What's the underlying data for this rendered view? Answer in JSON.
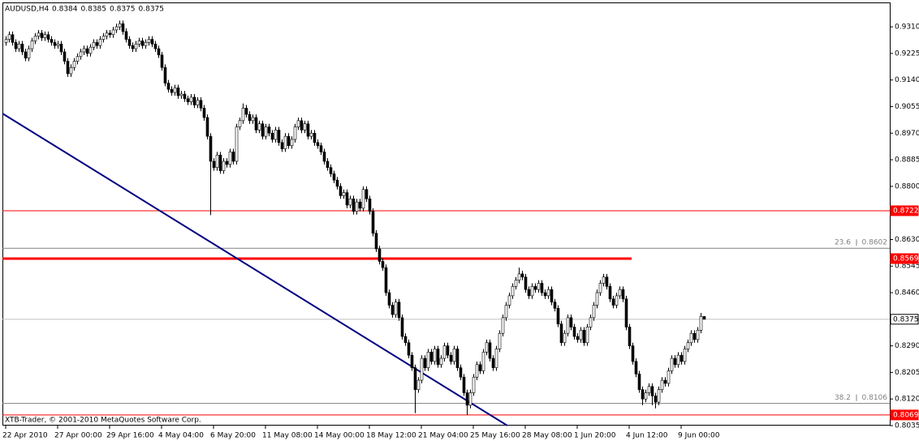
{
  "chart_data": {
    "type": "candlestick",
    "title": "AUDUSD,H4",
    "footer": "XTB-Trader, © 2001-2010 MetaQuotes Software Corp.",
    "ylim": [
      0.8035,
      0.9388
    ],
    "yticks": [
      {
        "value": 0.931,
        "label": "0.9310"
      },
      {
        "value": 0.9225,
        "label": "0.9225"
      },
      {
        "value": 0.914,
        "label": "0.9140"
      },
      {
        "value": 0.9055,
        "label": "0.9055"
      },
      {
        "value": 0.897,
        "label": "0.8970"
      },
      {
        "value": 0.8885,
        "label": "0.8885"
      },
      {
        "value": 0.88,
        "label": "0.8800"
      },
      {
        "value": 0.863,
        "label": "0.8630"
      },
      {
        "value": 0.8545,
        "label": "0.8545"
      },
      {
        "value": 0.846,
        "label": "0.8460"
      },
      {
        "value": 0.829,
        "label": "0.8290"
      },
      {
        "value": 0.8205,
        "label": "0.8205"
      },
      {
        "value": 0.812,
        "label": "0.8120"
      },
      {
        "value": 0.8035,
        "label": "0.8035"
      }
    ],
    "xticks": [
      {
        "index": 0,
        "label": "22 Apr 2010"
      },
      {
        "index": 16,
        "label": "27 Apr 00:00"
      },
      {
        "index": 32,
        "label": "29 Apr 16:00"
      },
      {
        "index": 48,
        "label": "4 May 04:00"
      },
      {
        "index": 64,
        "label": "6 May 20:00"
      },
      {
        "index": 80,
        "label": "11 May 08:00"
      },
      {
        "index": 96,
        "label": "14 May 00:00"
      },
      {
        "index": 112,
        "label": "18 May 12:00"
      },
      {
        "index": 128,
        "label": "21 May 04:00"
      },
      {
        "index": 144,
        "label": "25 May 16:00"
      },
      {
        "index": 160,
        "label": "28 May 08:00"
      },
      {
        "index": 176,
        "label": "1 Jun 20:00"
      },
      {
        "index": 192,
        "label": "4 Jun 12:00"
      },
      {
        "index": 208,
        "label": "9 Jun 00:00"
      }
    ],
    "horizontal_lines": [
      {
        "value": 0.8722,
        "color": "#ff0000",
        "width": 1,
        "label_bg": "#ff0000"
      },
      {
        "value": 0.8569,
        "color": "#ff0000",
        "width": 3,
        "label_bg": "#ff0000"
      },
      {
        "value": 0.8069,
        "color": "#ff0000",
        "width": 1,
        "label_bg": "#ff0000"
      },
      {
        "value": 0.8375,
        "color": "#c0c0c0",
        "width": 1,
        "label_bg": "#ffffff"
      }
    ],
    "fibo_levels": [
      {
        "level": 23.6,
        "price": 0.8602
      },
      {
        "level": 38.2,
        "price": 0.8106
      }
    ],
    "trendline": {
      "color": "#000080",
      "values": [
        0.9033,
        0.8035
      ]
    },
    "candles": [
      [
        0.926,
        0.928,
        0.925,
        0.927
      ],
      [
        0.927,
        0.9295,
        0.926,
        0.9285
      ],
      [
        0.9285,
        0.9295,
        0.925,
        0.926
      ],
      [
        0.926,
        0.927,
        0.923,
        0.924
      ],
      [
        0.924,
        0.9265,
        0.923,
        0.9255
      ],
      [
        0.9255,
        0.9265,
        0.922,
        0.923
      ],
      [
        0.923,
        0.924,
        0.92,
        0.921
      ],
      [
        0.921,
        0.925,
        0.92,
        0.924
      ],
      [
        0.924,
        0.9275,
        0.923,
        0.9265
      ],
      [
        0.9265,
        0.929,
        0.9255,
        0.928
      ],
      [
        0.928,
        0.93,
        0.927,
        0.929
      ],
      [
        0.929,
        0.93,
        0.9265,
        0.9275
      ],
      [
        0.9275,
        0.9295,
        0.9265,
        0.9285
      ],
      [
        0.9285,
        0.9295,
        0.926,
        0.927
      ],
      [
        0.927,
        0.928,
        0.925,
        0.926
      ],
      [
        0.926,
        0.927,
        0.924,
        0.925
      ],
      [
        0.925,
        0.9265,
        0.924,
        0.9255
      ],
      [
        0.9255,
        0.9265,
        0.922,
        0.923
      ],
      [
        0.923,
        0.924,
        0.919,
        0.92
      ],
      [
        0.92,
        0.921,
        0.915,
        0.916
      ],
      [
        0.916,
        0.919,
        0.915,
        0.918
      ],
      [
        0.918,
        0.921,
        0.917,
        0.92
      ],
      [
        0.92,
        0.9225,
        0.919,
        0.9215
      ],
      [
        0.9215,
        0.924,
        0.9205,
        0.923
      ],
      [
        0.923,
        0.925,
        0.922,
        0.924
      ],
      [
        0.924,
        0.925,
        0.9215,
        0.9225
      ],
      [
        0.9225,
        0.9255,
        0.9215,
        0.9245
      ],
      [
        0.9245,
        0.927,
        0.9235,
        0.926
      ],
      [
        0.926,
        0.927,
        0.924,
        0.925
      ],
      [
        0.925,
        0.928,
        0.924,
        0.927
      ],
      [
        0.927,
        0.929,
        0.926,
        0.928
      ],
      [
        0.928,
        0.93,
        0.927,
        0.929
      ],
      [
        0.929,
        0.93,
        0.9275,
        0.9285
      ],
      [
        0.9285,
        0.931,
        0.9275,
        0.93
      ],
      [
        0.93,
        0.932,
        0.929,
        0.931
      ],
      [
        0.931,
        0.933,
        0.93,
        0.932
      ],
      [
        0.932,
        0.933,
        0.9285,
        0.9295
      ],
      [
        0.9295,
        0.9305,
        0.926,
        0.927
      ],
      [
        0.927,
        0.928,
        0.924,
        0.925
      ],
      [
        0.925,
        0.926,
        0.923,
        0.924
      ],
      [
        0.924,
        0.9265,
        0.923,
        0.9255
      ],
      [
        0.9255,
        0.9275,
        0.9245,
        0.9265
      ],
      [
        0.9265,
        0.9275,
        0.924,
        0.925
      ],
      [
        0.925,
        0.927,
        0.924,
        0.926
      ],
      [
        0.926,
        0.928,
        0.925,
        0.927
      ],
      [
        0.927,
        0.928,
        0.9245,
        0.9255
      ],
      [
        0.9255,
        0.9265,
        0.923,
        0.924
      ],
      [
        0.924,
        0.925,
        0.921,
        0.922
      ],
      [
        0.922,
        0.923,
        0.917,
        0.918
      ],
      [
        0.918,
        0.919,
        0.912,
        0.913
      ],
      [
        0.913,
        0.914,
        0.91,
        0.911
      ],
      [
        0.911,
        0.912,
        0.909,
        0.91
      ],
      [
        0.91,
        0.9125,
        0.909,
        0.9115
      ],
      [
        0.9115,
        0.9125,
        0.908,
        0.909
      ],
      [
        0.909,
        0.9105,
        0.908,
        0.9095
      ],
      [
        0.9095,
        0.9105,
        0.907,
        0.908
      ],
      [
        0.908,
        0.909,
        0.906,
        0.907
      ],
      [
        0.907,
        0.9095,
        0.906,
        0.9085
      ],
      [
        0.9085,
        0.9095,
        0.905,
        0.906
      ],
      [
        0.906,
        0.9085,
        0.905,
        0.9075
      ],
      [
        0.9075,
        0.9085,
        0.904,
        0.905
      ],
      [
        0.905,
        0.906,
        0.901,
        0.902
      ],
      [
        0.902,
        0.903,
        0.895,
        0.896
      ],
      [
        0.896,
        0.897,
        0.8708,
        0.888
      ],
      [
        0.888,
        0.889,
        0.885,
        0.886
      ],
      [
        0.886,
        0.891,
        0.885,
        0.89
      ],
      [
        0.89,
        0.891,
        0.884,
        0.885
      ],
      [
        0.885,
        0.889,
        0.884,
        0.888
      ],
      [
        0.888,
        0.889,
        0.886,
        0.887
      ],
      [
        0.887,
        0.892,
        0.886,
        0.891
      ],
      [
        0.891,
        0.892,
        0.887,
        0.888
      ],
      [
        0.888,
        0.9,
        0.887,
        0.899
      ],
      [
        0.899,
        0.902,
        0.898,
        0.901
      ],
      [
        0.901,
        0.9065,
        0.9,
        0.905
      ],
      [
        0.905,
        0.906,
        0.902,
        0.903
      ],
      [
        0.903,
        0.904,
        0.9,
        0.901
      ],
      [
        0.901,
        0.903,
        0.9,
        0.902
      ],
      [
        0.902,
        0.903,
        0.897,
        0.898
      ],
      [
        0.898,
        0.901,
        0.897,
        0.9
      ],
      [
        0.9,
        0.901,
        0.895,
        0.896
      ],
      [
        0.896,
        0.9,
        0.895,
        0.899
      ],
      [
        0.899,
        0.9,
        0.896,
        0.897
      ],
      [
        0.897,
        0.898,
        0.894,
        0.895
      ],
      [
        0.895,
        0.899,
        0.894,
        0.898
      ],
      [
        0.898,
        0.899,
        0.893,
        0.894
      ],
      [
        0.894,
        0.895,
        0.891,
        0.892
      ],
      [
        0.892,
        0.897,
        0.891,
        0.896
      ],
      [
        0.896,
        0.897,
        0.892,
        0.893
      ],
      [
        0.893,
        0.896,
        0.892,
        0.895
      ],
      [
        0.895,
        0.9,
        0.894,
        0.899
      ],
      [
        0.899,
        0.902,
        0.898,
        0.901
      ],
      [
        0.901,
        0.902,
        0.897,
        0.898
      ],
      [
        0.898,
        0.901,
        0.897,
        0.9
      ],
      [
        0.9,
        0.901,
        0.895,
        0.896
      ],
      [
        0.896,
        0.898,
        0.895,
        0.897
      ],
      [
        0.897,
        0.898,
        0.893,
        0.894
      ],
      [
        0.894,
        0.895,
        0.892,
        0.893
      ],
      [
        0.893,
        0.894,
        0.89,
        0.891
      ],
      [
        0.891,
        0.892,
        0.887,
        0.888
      ],
      [
        0.888,
        0.889,
        0.885,
        0.886
      ],
      [
        0.886,
        0.887,
        0.883,
        0.884
      ],
      [
        0.884,
        0.885,
        0.881,
        0.882
      ],
      [
        0.882,
        0.883,
        0.879,
        0.88
      ],
      [
        0.88,
        0.881,
        0.876,
        0.877
      ],
      [
        0.877,
        0.879,
        0.876,
        0.878
      ],
      [
        0.878,
        0.879,
        0.873,
        0.874
      ],
      [
        0.874,
        0.877,
        0.873,
        0.876
      ],
      [
        0.876,
        0.877,
        0.871,
        0.872
      ],
      [
        0.872,
        0.876,
        0.871,
        0.875
      ],
      [
        0.875,
        0.876,
        0.872,
        0.873
      ],
      [
        0.873,
        0.88,
        0.872,
        0.879
      ],
      [
        0.879,
        0.88,
        0.875,
        0.876
      ],
      [
        0.876,
        0.877,
        0.871,
        0.872
      ],
      [
        0.872,
        0.873,
        0.864,
        0.865
      ],
      [
        0.865,
        0.866,
        0.859,
        0.86
      ],
      [
        0.86,
        0.861,
        0.855,
        0.856
      ],
      [
        0.856,
        0.857,
        0.853,
        0.854
      ],
      [
        0.854,
        0.855,
        0.845,
        0.846
      ],
      [
        0.846,
        0.847,
        0.841,
        0.842
      ],
      [
        0.842,
        0.843,
        0.838,
        0.839
      ],
      [
        0.839,
        0.844,
        0.838,
        0.843
      ],
      [
        0.843,
        0.844,
        0.837,
        0.838
      ],
      [
        0.838,
        0.839,
        0.831,
        0.832
      ],
      [
        0.832,
        0.833,
        0.829,
        0.83
      ],
      [
        0.83,
        0.831,
        0.825,
        0.826
      ],
      [
        0.826,
        0.827,
        0.821,
        0.822
      ],
      [
        0.822,
        0.823,
        0.8075,
        0.815
      ],
      [
        0.815,
        0.819,
        0.814,
        0.818
      ],
      [
        0.818,
        0.826,
        0.817,
        0.825
      ],
      [
        0.825,
        0.826,
        0.821,
        0.822
      ],
      [
        0.822,
        0.828,
        0.821,
        0.827
      ],
      [
        0.827,
        0.828,
        0.823,
        0.824
      ],
      [
        0.824,
        0.829,
        0.823,
        0.828
      ],
      [
        0.828,
        0.829,
        0.822,
        0.823
      ],
      [
        0.823,
        0.826,
        0.822,
        0.825
      ],
      [
        0.825,
        0.83,
        0.824,
        0.829
      ],
      [
        0.829,
        0.83,
        0.825,
        0.826
      ],
      [
        0.826,
        0.827,
        0.823,
        0.824
      ],
      [
        0.824,
        0.829,
        0.823,
        0.828
      ],
      [
        0.828,
        0.829,
        0.821,
        0.822
      ],
      [
        0.822,
        0.823,
        0.818,
        0.819
      ],
      [
        0.819,
        0.82,
        0.813,
        0.814
      ],
      [
        0.814,
        0.815,
        0.8069,
        0.81
      ],
      [
        0.81,
        0.815,
        0.809,
        0.814
      ],
      [
        0.814,
        0.82,
        0.813,
        0.819
      ],
      [
        0.819,
        0.824,
        0.818,
        0.823
      ],
      [
        0.823,
        0.824,
        0.82,
        0.821
      ],
      [
        0.821,
        0.828,
        0.82,
        0.827
      ],
      [
        0.827,
        0.831,
        0.826,
        0.83
      ],
      [
        0.83,
        0.831,
        0.824,
        0.825
      ],
      [
        0.825,
        0.826,
        0.821,
        0.822
      ],
      [
        0.822,
        0.829,
        0.821,
        0.828
      ],
      [
        0.828,
        0.834,
        0.827,
        0.833
      ],
      [
        0.833,
        0.839,
        0.832,
        0.838
      ],
      [
        0.838,
        0.843,
        0.837,
        0.842
      ],
      [
        0.842,
        0.846,
        0.841,
        0.845
      ],
      [
        0.845,
        0.849,
        0.844,
        0.848
      ],
      [
        0.848,
        0.851,
        0.847,
        0.85
      ],
      [
        0.85,
        0.854,
        0.849,
        0.852
      ],
      [
        0.852,
        0.853,
        0.85,
        0.851
      ],
      [
        0.851,
        0.852,
        0.846,
        0.847
      ],
      [
        0.847,
        0.848,
        0.844,
        0.845
      ],
      [
        0.845,
        0.849,
        0.844,
        0.848
      ],
      [
        0.848,
        0.849,
        0.846,
        0.847
      ],
      [
        0.847,
        0.85,
        0.846,
        0.849
      ],
      [
        0.849,
        0.85,
        0.845,
        0.846
      ],
      [
        0.846,
        0.847,
        0.844,
        0.845
      ],
      [
        0.845,
        0.848,
        0.844,
        0.847
      ],
      [
        0.847,
        0.848,
        0.842,
        0.843
      ],
      [
        0.843,
        0.844,
        0.84,
        0.841
      ],
      [
        0.841,
        0.842,
        0.835,
        0.836
      ],
      [
        0.836,
        0.837,
        0.829,
        0.83
      ],
      [
        0.83,
        0.834,
        0.829,
        0.833
      ],
      [
        0.833,
        0.839,
        0.832,
        0.838
      ],
      [
        0.838,
        0.839,
        0.834,
        0.835
      ],
      [
        0.835,
        0.836,
        0.831,
        0.832
      ],
      [
        0.832,
        0.833,
        0.83,
        0.831
      ],
      [
        0.831,
        0.835,
        0.83,
        0.834
      ],
      [
        0.834,
        0.835,
        0.829,
        0.83
      ],
      [
        0.83,
        0.836,
        0.829,
        0.835
      ],
      [
        0.835,
        0.839,
        0.834,
        0.838
      ],
      [
        0.838,
        0.843,
        0.837,
        0.842
      ],
      [
        0.842,
        0.847,
        0.841,
        0.846
      ],
      [
        0.846,
        0.85,
        0.845,
        0.849
      ],
      [
        0.849,
        0.852,
        0.848,
        0.851
      ],
      [
        0.851,
        0.852,
        0.847,
        0.848
      ],
      [
        0.848,
        0.849,
        0.843,
        0.844
      ],
      [
        0.844,
        0.845,
        0.841,
        0.842
      ],
      [
        0.842,
        0.846,
        0.841,
        0.845
      ],
      [
        0.845,
        0.848,
        0.844,
        0.847
      ],
      [
        0.847,
        0.848,
        0.843,
        0.844
      ],
      [
        0.844,
        0.845,
        0.834,
        0.835
      ],
      [
        0.835,
        0.836,
        0.828,
        0.829
      ],
      [
        0.829,
        0.83,
        0.823,
        0.824
      ],
      [
        0.824,
        0.825,
        0.819,
        0.82
      ],
      [
        0.82,
        0.821,
        0.814,
        0.815
      ],
      [
        0.815,
        0.816,
        0.81,
        0.812
      ],
      [
        0.812,
        0.815,
        0.811,
        0.814
      ],
      [
        0.814,
        0.817,
        0.813,
        0.816
      ],
      [
        0.816,
        0.817,
        0.81,
        0.813
      ],
      [
        0.813,
        0.814,
        0.809,
        0.811
      ],
      [
        0.811,
        0.816,
        0.81,
        0.815
      ],
      [
        0.815,
        0.819,
        0.814,
        0.818
      ],
      [
        0.818,
        0.819,
        0.816,
        0.817
      ],
      [
        0.817,
        0.822,
        0.816,
        0.821
      ],
      [
        0.821,
        0.826,
        0.82,
        0.825
      ],
      [
        0.825,
        0.826,
        0.822,
        0.823
      ],
      [
        0.823,
        0.827,
        0.822,
        0.826
      ],
      [
        0.826,
        0.827,
        0.823,
        0.824
      ],
      [
        0.824,
        0.829,
        0.823,
        0.828
      ],
      [
        0.828,
        0.831,
        0.827,
        0.83
      ],
      [
        0.83,
        0.834,
        0.829,
        0.833
      ],
      [
        0.833,
        0.834,
        0.83,
        0.831
      ],
      [
        0.831,
        0.835,
        0.83,
        0.834
      ],
      [
        0.834,
        0.8395,
        0.833,
        0.8384
      ],
      [
        0.8384,
        0.8385,
        0.8375,
        0.8375
      ]
    ]
  }
}
